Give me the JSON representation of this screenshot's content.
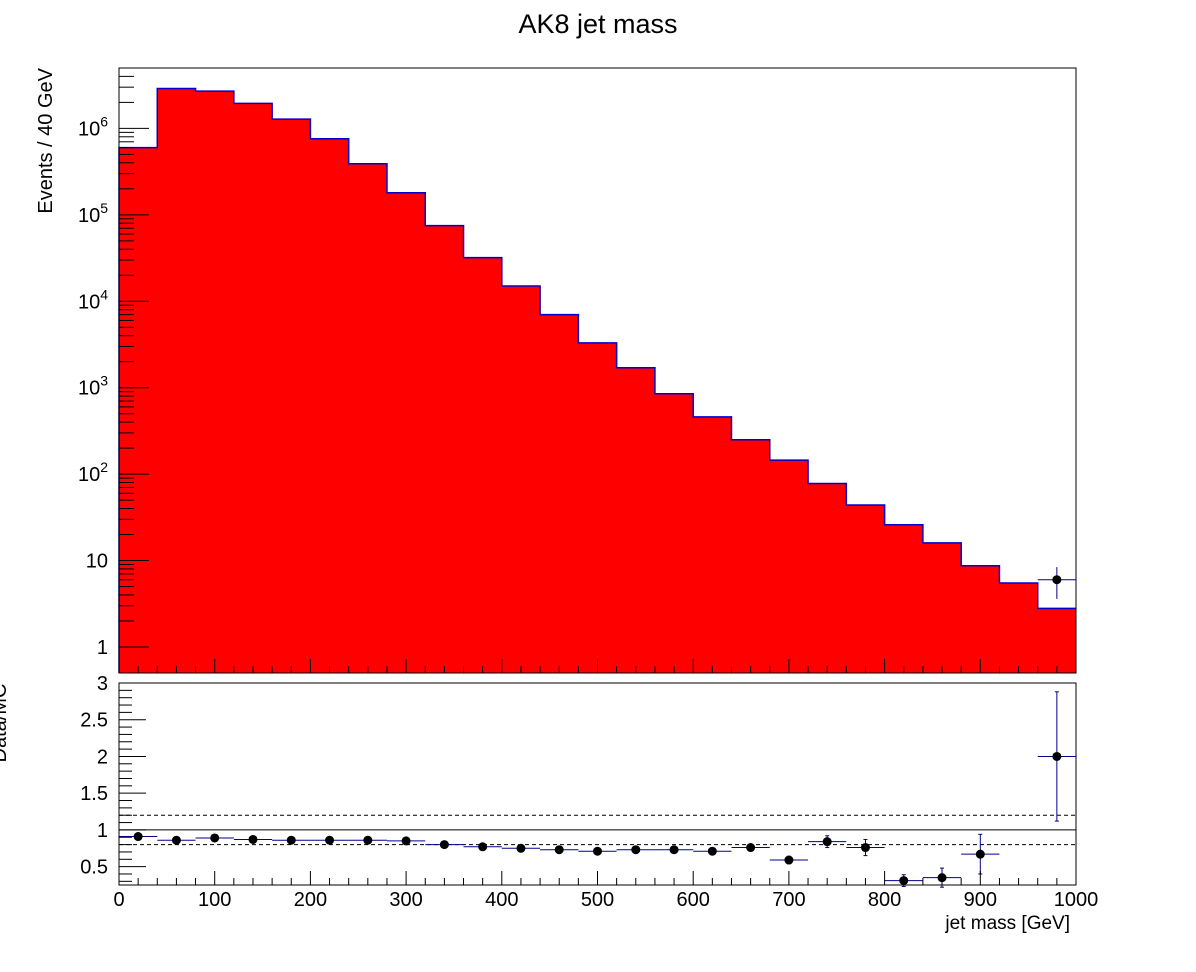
{
  "chart_data": [
    {
      "type": "bar",
      "title": "AK8 jet mass",
      "ylabel": "Events / 40 GeV",
      "yscale": "log",
      "ylim": [
        0.5,
        5000000
      ],
      "xlim": [
        0,
        1000
      ],
      "yticks": [
        {
          "value": 1,
          "label": "1"
        },
        {
          "value": 10,
          "label": "10"
        },
        {
          "value": 100,
          "label": "10",
          "sup": "2"
        },
        {
          "value": 1000,
          "label": "10",
          "sup": "3"
        },
        {
          "value": 10000,
          "label": "10",
          "sup": "4"
        },
        {
          "value": 100000,
          "label": "10",
          "sup": "5"
        },
        {
          "value": 1000000,
          "label": "10",
          "sup": "6"
        }
      ],
      "bin_edges": [
        0,
        40,
        80,
        120,
        160,
        200,
        240,
        280,
        320,
        360,
        400,
        440,
        480,
        520,
        560,
        600,
        640,
        680,
        720,
        760,
        800,
        840,
        880,
        920,
        960,
        1000
      ],
      "mc_values": [
        600000,
        2900000,
        2700000,
        1950000,
        1280000,
        760000,
        390000,
        180000,
        75000,
        32000,
        15000,
        7000,
        3300,
        1700,
        850,
        460,
        250,
        145,
        78,
        44,
        26,
        16,
        8.7,
        5.5,
        2.8
      ],
      "data_points": [
        {
          "x": 980,
          "y": 6,
          "yerr": 2.4
        }
      ],
      "colors": {
        "mc_fill": "#ff0000",
        "mc_line": "#0000cc",
        "data": "#000000"
      }
    },
    {
      "type": "scatter",
      "ylabel": "Data/MC",
      "xlabel": "jet mass [GeV]",
      "ylim": [
        0.25,
        3
      ],
      "xlim": [
        0,
        1000
      ],
      "yticks": [
        {
          "value": 0.5,
          "label": "0.5"
        },
        {
          "value": 1,
          "label": "1"
        },
        {
          "value": 1.5,
          "label": "1.5"
        },
        {
          "value": 2,
          "label": "2"
        },
        {
          "value": 2.5,
          "label": "2.5"
        },
        {
          "value": 3,
          "label": "3"
        }
      ],
      "xticks": [
        {
          "value": 0,
          "label": "0"
        },
        {
          "value": 100,
          "label": "100"
        },
        {
          "value": 200,
          "label": "200"
        },
        {
          "value": 300,
          "label": "300"
        },
        {
          "value": 400,
          "label": "400"
        },
        {
          "value": 500,
          "label": "500"
        },
        {
          "value": 600,
          "label": "600"
        },
        {
          "value": 700,
          "label": "700"
        },
        {
          "value": 800,
          "label": "800"
        },
        {
          "value": 900,
          "label": "900"
        },
        {
          "value": 1000,
          "label": "1000"
        }
      ],
      "reference_lines": {
        "solid": 1.0,
        "dashed": [
          0.8,
          1.2
        ]
      },
      "points": [
        {
          "x": 20,
          "y": 0.91,
          "yerr": 0.01
        },
        {
          "x": 60,
          "y": 0.86,
          "yerr": 0.01
        },
        {
          "x": 100,
          "y": 0.89,
          "yerr": 0.01
        },
        {
          "x": 140,
          "y": 0.87,
          "yerr": 0.01
        },
        {
          "x": 180,
          "y": 0.86,
          "yerr": 0.01
        },
        {
          "x": 220,
          "y": 0.86,
          "yerr": 0.01
        },
        {
          "x": 260,
          "y": 0.86,
          "yerr": 0.01
        },
        {
          "x": 300,
          "y": 0.85,
          "yerr": 0.01
        },
        {
          "x": 340,
          "y": 0.8,
          "yerr": 0.01
        },
        {
          "x": 380,
          "y": 0.77,
          "yerr": 0.01
        },
        {
          "x": 420,
          "y": 0.75,
          "yerr": 0.01
        },
        {
          "x": 460,
          "y": 0.73,
          "yerr": 0.015
        },
        {
          "x": 500,
          "y": 0.71,
          "yerr": 0.02
        },
        {
          "x": 540,
          "y": 0.73,
          "yerr": 0.02
        },
        {
          "x": 580,
          "y": 0.73,
          "yerr": 0.025
        },
        {
          "x": 620,
          "y": 0.71,
          "yerr": 0.03
        },
        {
          "x": 660,
          "y": 0.76,
          "yerr": 0.04
        },
        {
          "x": 700,
          "y": 0.59,
          "yerr": 0.05
        },
        {
          "x": 740,
          "y": 0.84,
          "yerr": 0.08
        },
        {
          "x": 780,
          "y": 0.76,
          "yerr": 0.11
        },
        {
          "x": 820,
          "y": 0.31,
          "yerr": 0.08
        },
        {
          "x": 860,
          "y": 0.35,
          "yerr": 0.13
        },
        {
          "x": 900,
          "y": 0.67,
          "yerr": 0.27
        },
        {
          "x": 980,
          "y": 2.0,
          "yerr": 0.88
        }
      ],
      "colors": {
        "marker": "#000000",
        "errorbar": "#00008b",
        "ref_line": "#000000"
      }
    }
  ]
}
